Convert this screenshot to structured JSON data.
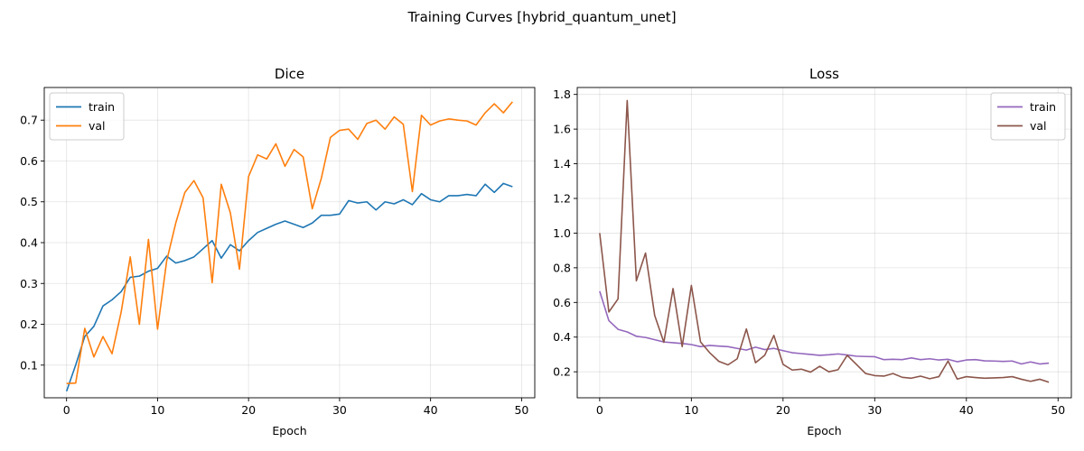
{
  "figure": {
    "suptitle": "Training Curves [hybrid_quantum_unet]"
  },
  "chart_data": [
    {
      "type": "line",
      "title": "Dice",
      "xlabel": "Epoch",
      "ylabel": "",
      "xlim": [
        -2.45,
        51.45
      ],
      "ylim": [
        0.02,
        0.78
      ],
      "xticks": [
        0,
        10,
        20,
        30,
        40,
        50
      ],
      "yticks": [
        0.1,
        0.2,
        0.3,
        0.4,
        0.5,
        0.6,
        0.7
      ],
      "ytick_labels": [
        "0.1",
        "0.2",
        "0.3",
        "0.4",
        "0.5",
        "0.6",
        "0.7"
      ],
      "grid": true,
      "legend": "upper-left",
      "series": [
        {
          "name": "train",
          "color": "#1f77b4",
          "values": [
            0.036,
            0.1,
            0.17,
            0.195,
            0.245,
            0.26,
            0.28,
            0.315,
            0.318,
            0.33,
            0.337,
            0.367,
            0.35,
            0.356,
            0.365,
            0.385,
            0.405,
            0.362,
            0.395,
            0.38,
            0.405,
            0.425,
            0.435,
            0.445,
            0.453,
            0.445,
            0.437,
            0.448,
            0.467,
            0.467,
            0.47,
            0.503,
            0.497,
            0.5,
            0.48,
            0.5,
            0.495,
            0.505,
            0.493,
            0.52,
            0.505,
            0.5,
            0.515,
            0.515,
            0.518,
            0.515,
            0.543,
            0.523,
            0.545,
            0.537
          ]
        },
        {
          "name": "val",
          "color": "#ff7f0e",
          "values": [
            0.055,
            0.056,
            0.19,
            0.12,
            0.17,
            0.128,
            0.23,
            0.365,
            0.2,
            0.408,
            0.188,
            0.355,
            0.448,
            0.523,
            0.552,
            0.51,
            0.302,
            0.543,
            0.473,
            0.335,
            0.562,
            0.615,
            0.605,
            0.642,
            0.587,
            0.628,
            0.61,
            0.483,
            0.558,
            0.658,
            0.675,
            0.678,
            0.653,
            0.692,
            0.7,
            0.678,
            0.708,
            0.69,
            0.525,
            0.712,
            0.688,
            0.698,
            0.703,
            0.7,
            0.698,
            0.688,
            0.718,
            0.74,
            0.718,
            0.745
          ]
        }
      ]
    },
    {
      "type": "line",
      "title": "Loss",
      "xlabel": "Epoch",
      "ylabel": "",
      "xlim": [
        -2.45,
        51.45
      ],
      "ylim": [
        0.05,
        1.84
      ],
      "xticks": [
        0,
        10,
        20,
        30,
        40,
        50
      ],
      "yticks": [
        0.2,
        0.4,
        0.6,
        0.8,
        1.0,
        1.2,
        1.4,
        1.6,
        1.8
      ],
      "ytick_labels": [
        "0.2",
        "0.4",
        "0.6",
        "0.8",
        "1.0",
        "1.2",
        "1.4",
        "1.6",
        "1.8"
      ],
      "grid": true,
      "legend": "upper-right",
      "series": [
        {
          "name": "train",
          "color": "#9467bd",
          "values": [
            0.665,
            0.495,
            0.445,
            0.43,
            0.405,
            0.398,
            0.385,
            0.372,
            0.368,
            0.363,
            0.357,
            0.345,
            0.352,
            0.348,
            0.345,
            0.335,
            0.325,
            0.342,
            0.328,
            0.335,
            0.322,
            0.31,
            0.305,
            0.3,
            0.295,
            0.298,
            0.303,
            0.297,
            0.29,
            0.288,
            0.287,
            0.27,
            0.272,
            0.27,
            0.28,
            0.27,
            0.275,
            0.268,
            0.272,
            0.258,
            0.268,
            0.27,
            0.263,
            0.262,
            0.26,
            0.262,
            0.245,
            0.257,
            0.245,
            0.25
          ]
        },
        {
          "name": "val",
          "color": "#8c564b",
          "values": [
            1.0,
            0.545,
            0.62,
            1.765,
            0.725,
            0.885,
            0.525,
            0.37,
            0.68,
            0.345,
            0.698,
            0.372,
            0.31,
            0.26,
            0.24,
            0.275,
            0.447,
            0.252,
            0.295,
            0.41,
            0.243,
            0.21,
            0.215,
            0.198,
            0.232,
            0.2,
            0.212,
            0.295,
            0.243,
            0.19,
            0.178,
            0.175,
            0.19,
            0.168,
            0.163,
            0.175,
            0.16,
            0.172,
            0.262,
            0.158,
            0.172,
            0.167,
            0.163,
            0.165,
            0.167,
            0.172,
            0.157,
            0.145,
            0.157,
            0.14
          ]
        }
      ]
    }
  ]
}
